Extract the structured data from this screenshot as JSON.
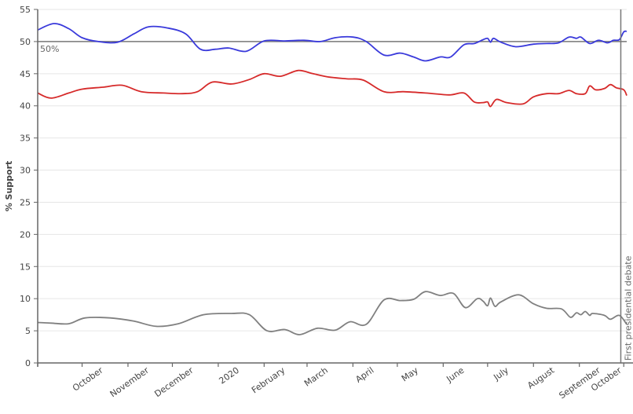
{
  "chart_data": {
    "type": "line",
    "ylabel": "% Support",
    "ylim": [
      0,
      55
    ],
    "y_ticks": [
      "0",
      "5",
      "10",
      "15",
      "20",
      "25",
      "30",
      "35",
      "40",
      "45",
      "50",
      "55"
    ],
    "x_ticks": [
      "October",
      "November",
      "December",
      "2020",
      "February",
      "March",
      "April",
      "May",
      "June",
      "July",
      "August",
      "September",
      "October"
    ],
    "x_range": [
      "2019-09-01",
      "2020-10-03"
    ],
    "grid": true,
    "reference_line": {
      "y": 50,
      "label": "50%"
    },
    "event_line": {
      "x": "2020-09-29",
      "label": "First presidential debate"
    },
    "series": [
      {
        "color": "#3a3adb",
        "points": [
          [
            "2019-09-01",
            51.8
          ],
          [
            "2019-09-12",
            52.8
          ],
          [
            "2019-09-22",
            52.0
          ],
          [
            "2019-10-01",
            50.6
          ],
          [
            "2019-10-12",
            50.0
          ],
          [
            "2019-10-25",
            49.9
          ],
          [
            "2019-11-05",
            51.2
          ],
          [
            "2019-11-15",
            52.3
          ],
          [
            "2019-11-28",
            52.1
          ],
          [
            "2019-12-10",
            51.2
          ],
          [
            "2019-12-20",
            48.8
          ],
          [
            "2019-12-30",
            48.8
          ],
          [
            "2020-01-08",
            49.0
          ],
          [
            "2020-01-20",
            48.5
          ],
          [
            "2020-02-01",
            50.1
          ],
          [
            "2020-02-15",
            50.1
          ],
          [
            "2020-02-28",
            50.2
          ],
          [
            "2020-03-10",
            50.0
          ],
          [
            "2020-03-20",
            50.6
          ],
          [
            "2020-04-01",
            50.7
          ],
          [
            "2020-04-10",
            50.0
          ],
          [
            "2020-04-22",
            47.9
          ],
          [
            "2020-05-03",
            48.2
          ],
          [
            "2020-05-12",
            47.6
          ],
          [
            "2020-05-20",
            47.0
          ],
          [
            "2020-05-30",
            47.6
          ],
          [
            "2020-06-06",
            47.6
          ],
          [
            "2020-06-15",
            49.5
          ],
          [
            "2020-06-22",
            49.7
          ],
          [
            "2020-06-28",
            50.3
          ],
          [
            "2020-07-01",
            50.5
          ],
          [
            "2020-07-03",
            49.9
          ],
          [
            "2020-07-05",
            50.5
          ],
          [
            "2020-07-10",
            49.9
          ],
          [
            "2020-07-20",
            49.2
          ],
          [
            "2020-08-01",
            49.6
          ],
          [
            "2020-08-10",
            49.7
          ],
          [
            "2020-08-18",
            49.8
          ],
          [
            "2020-08-25",
            50.7
          ],
          [
            "2020-08-30",
            50.5
          ],
          [
            "2020-09-02",
            50.7
          ],
          [
            "2020-09-08",
            49.7
          ],
          [
            "2020-09-14",
            50.2
          ],
          [
            "2020-09-20",
            49.8
          ],
          [
            "2020-09-24",
            50.2
          ],
          [
            "2020-09-28",
            50.3
          ],
          [
            "2020-10-01",
            51.5
          ],
          [
            "2020-10-03",
            51.6
          ]
        ]
      },
      {
        "color": "#d62a2a",
        "points": [
          [
            "2019-09-01",
            42.0
          ],
          [
            "2019-09-10",
            41.2
          ],
          [
            "2019-09-22",
            42.0
          ],
          [
            "2019-10-01",
            42.6
          ],
          [
            "2019-10-15",
            42.9
          ],
          [
            "2019-10-28",
            43.2
          ],
          [
            "2019-11-10",
            42.2
          ],
          [
            "2019-11-25",
            42.0
          ],
          [
            "2019-12-08",
            41.9
          ],
          [
            "2019-12-18",
            42.2
          ],
          [
            "2019-12-28",
            43.7
          ],
          [
            "2020-01-10",
            43.4
          ],
          [
            "2020-01-22",
            44.1
          ],
          [
            "2020-02-01",
            45.0
          ],
          [
            "2020-02-12",
            44.6
          ],
          [
            "2020-02-24",
            45.5
          ],
          [
            "2020-03-05",
            45.0
          ],
          [
            "2020-03-15",
            44.5
          ],
          [
            "2020-03-28",
            44.2
          ],
          [
            "2020-04-08",
            44.0
          ],
          [
            "2020-04-22",
            42.2
          ],
          [
            "2020-05-05",
            42.2
          ],
          [
            "2020-05-20",
            42.0
          ],
          [
            "2020-06-05",
            41.7
          ],
          [
            "2020-06-15",
            42.0
          ],
          [
            "2020-06-22",
            40.6
          ],
          [
            "2020-06-28",
            40.5
          ],
          [
            "2020-07-01",
            40.6
          ],
          [
            "2020-07-03",
            39.9
          ],
          [
            "2020-07-07",
            41.0
          ],
          [
            "2020-07-14",
            40.5
          ],
          [
            "2020-07-25",
            40.3
          ],
          [
            "2020-08-01",
            41.4
          ],
          [
            "2020-08-10",
            41.9
          ],
          [
            "2020-08-18",
            41.9
          ],
          [
            "2020-08-25",
            42.4
          ],
          [
            "2020-08-30",
            41.9
          ],
          [
            "2020-09-05",
            41.9
          ],
          [
            "2020-09-08",
            43.1
          ],
          [
            "2020-09-12",
            42.5
          ],
          [
            "2020-09-18",
            42.7
          ],
          [
            "2020-09-22",
            43.3
          ],
          [
            "2020-09-26",
            42.8
          ],
          [
            "2020-10-01",
            42.5
          ],
          [
            "2020-10-03",
            41.6
          ]
        ]
      },
      {
        "color": "#808080",
        "points": [
          [
            "2019-09-01",
            6.3
          ],
          [
            "2019-09-10",
            6.2
          ],
          [
            "2019-09-22",
            6.1
          ],
          [
            "2019-10-03",
            7.0
          ],
          [
            "2019-10-20",
            7.0
          ],
          [
            "2019-11-05",
            6.5
          ],
          [
            "2019-11-20",
            5.7
          ],
          [
            "2019-12-05",
            6.1
          ],
          [
            "2019-12-22",
            7.5
          ],
          [
            "2020-01-10",
            7.7
          ],
          [
            "2020-01-22",
            7.5
          ],
          [
            "2020-02-03",
            5.0
          ],
          [
            "2020-02-15",
            5.2
          ],
          [
            "2020-02-25",
            4.4
          ],
          [
            "2020-03-08",
            5.4
          ],
          [
            "2020-03-20",
            5.1
          ],
          [
            "2020-03-30",
            6.4
          ],
          [
            "2020-04-10",
            6.0
          ],
          [
            "2020-04-22",
            9.8
          ],
          [
            "2020-05-03",
            9.7
          ],
          [
            "2020-05-12",
            9.9
          ],
          [
            "2020-05-20",
            11.1
          ],
          [
            "2020-05-30",
            10.5
          ],
          [
            "2020-06-08",
            10.8
          ],
          [
            "2020-06-16",
            8.6
          ],
          [
            "2020-06-24",
            10.0
          ],
          [
            "2020-06-28",
            9.6
          ],
          [
            "2020-07-01",
            8.9
          ],
          [
            "2020-07-03",
            10.1
          ],
          [
            "2020-07-06",
            8.8
          ],
          [
            "2020-07-10",
            9.5
          ],
          [
            "2020-07-22",
            10.6
          ],
          [
            "2020-08-01",
            9.2
          ],
          [
            "2020-08-10",
            8.5
          ],
          [
            "2020-08-20",
            8.4
          ],
          [
            "2020-08-26",
            7.1
          ],
          [
            "2020-08-30",
            7.8
          ],
          [
            "2020-09-02",
            7.5
          ],
          [
            "2020-09-05",
            8.0
          ],
          [
            "2020-09-08",
            7.4
          ],
          [
            "2020-09-10",
            7.7
          ],
          [
            "2020-09-18",
            7.4
          ],
          [
            "2020-09-22",
            6.8
          ],
          [
            "2020-09-28",
            7.4
          ],
          [
            "2020-10-03",
            6.0
          ]
        ]
      }
    ]
  }
}
